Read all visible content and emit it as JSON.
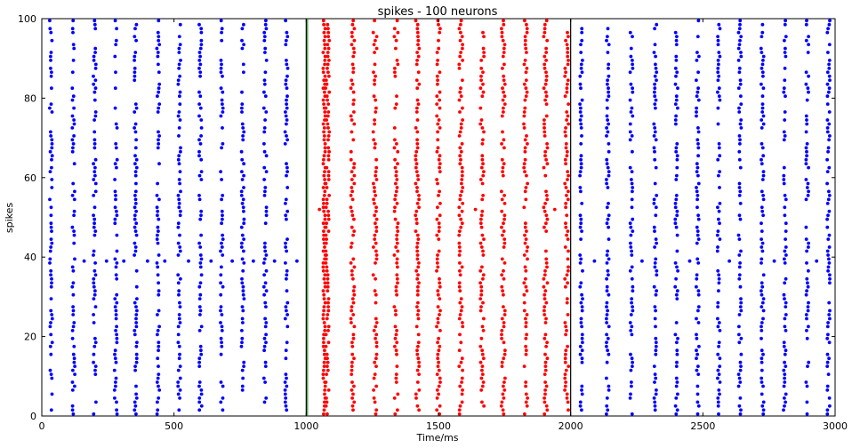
{
  "chart_data": {
    "type": "scatter",
    "title": "spikes - 100 neurons",
    "xlabel": "Time/ms",
    "ylabel": "spikes",
    "xlim": [
      0,
      3000
    ],
    "ylim": [
      0,
      100
    ],
    "xticks": [
      0,
      500,
      1000,
      1500,
      2000,
      2500,
      3000
    ],
    "yticks": [
      0,
      20,
      40,
      60,
      80,
      100
    ],
    "grid": false,
    "neuron_count": 100,
    "vertical_markers": [
      1000,
      2000
    ],
    "marker_color": "#000000",
    "first_marker_accent": "#008000",
    "series": [
      {
        "color": "#0000ff",
        "interval": [
          0,
          1000
        ],
        "burst_times": [
          35,
          120,
          200,
          280,
          355,
          440,
          520,
          600,
          680,
          760,
          845,
          925
        ],
        "extra_spike_neuron": 39,
        "extra_spike_times": [
          160,
          245,
          310,
          400,
          465,
          555,
          640,
          720,
          800,
          880,
          965
        ]
      },
      {
        "color": "#ff0000",
        "interval": [
          1000,
          2000
        ],
        "burst_times": [
          1080,
          1175,
          1260,
          1340,
          1420,
          1500,
          1585,
          1665,
          1745,
          1830,
          1905,
          1985
        ],
        "extra_spike_neuron": 52,
        "extra_spike_times": [
          1050,
          1640,
          1940
        ]
      },
      {
        "color": "#0000ff",
        "interval": [
          2000,
          3000
        ],
        "burst_times": [
          2040,
          2140,
          2230,
          2320,
          2400,
          2480,
          2560,
          2640,
          2725,
          2810,
          2895,
          2975
        ],
        "extra_spike_neuron": 39,
        "extra_spike_times": [
          2090,
          2270,
          2450,
          2600,
          2770,
          2930
        ]
      }
    ]
  }
}
